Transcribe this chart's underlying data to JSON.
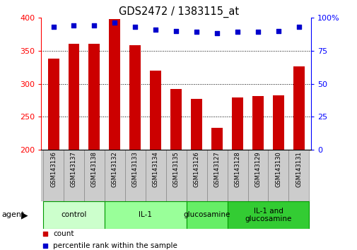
{
  "title": "GDS2472 / 1383115_at",
  "samples": [
    "GSM143136",
    "GSM143137",
    "GSM143138",
    "GSM143132",
    "GSM143133",
    "GSM143134",
    "GSM143135",
    "GSM143126",
    "GSM143127",
    "GSM143128",
    "GSM143129",
    "GSM143130",
    "GSM143131"
  ],
  "counts": [
    338,
    360,
    360,
    398,
    358,
    320,
    292,
    277,
    234,
    279,
    281,
    283,
    326
  ],
  "percentiles": [
    93,
    94,
    94,
    96,
    93,
    91,
    90,
    89,
    88,
    89,
    89,
    90,
    93
  ],
  "ymin": 200,
  "ymax": 400,
  "yticks": [
    200,
    250,
    300,
    350,
    400
  ],
  "y2min": 0,
  "y2max": 100,
  "y2ticks": [
    0,
    25,
    50,
    75,
    100
  ],
  "y2ticklabels": [
    "0",
    "25",
    "50",
    "75",
    "100%"
  ],
  "groups": [
    {
      "label": "control",
      "start": 0,
      "end": 3,
      "color": "#ccffcc"
    },
    {
      "label": "IL-1",
      "start": 3,
      "end": 7,
      "color": "#99ff99"
    },
    {
      "label": "glucosamine",
      "start": 7,
      "end": 9,
      "color": "#66ee66"
    },
    {
      "label": "IL-1 and\nglucosamine",
      "start": 9,
      "end": 13,
      "color": "#33cc33"
    }
  ],
  "bar_color": "#cc0000",
  "dot_color": "#0000cc",
  "bar_width": 0.55,
  "background_color": "#ffffff",
  "label_bg": "#cccccc",
  "group_border": "#009900"
}
